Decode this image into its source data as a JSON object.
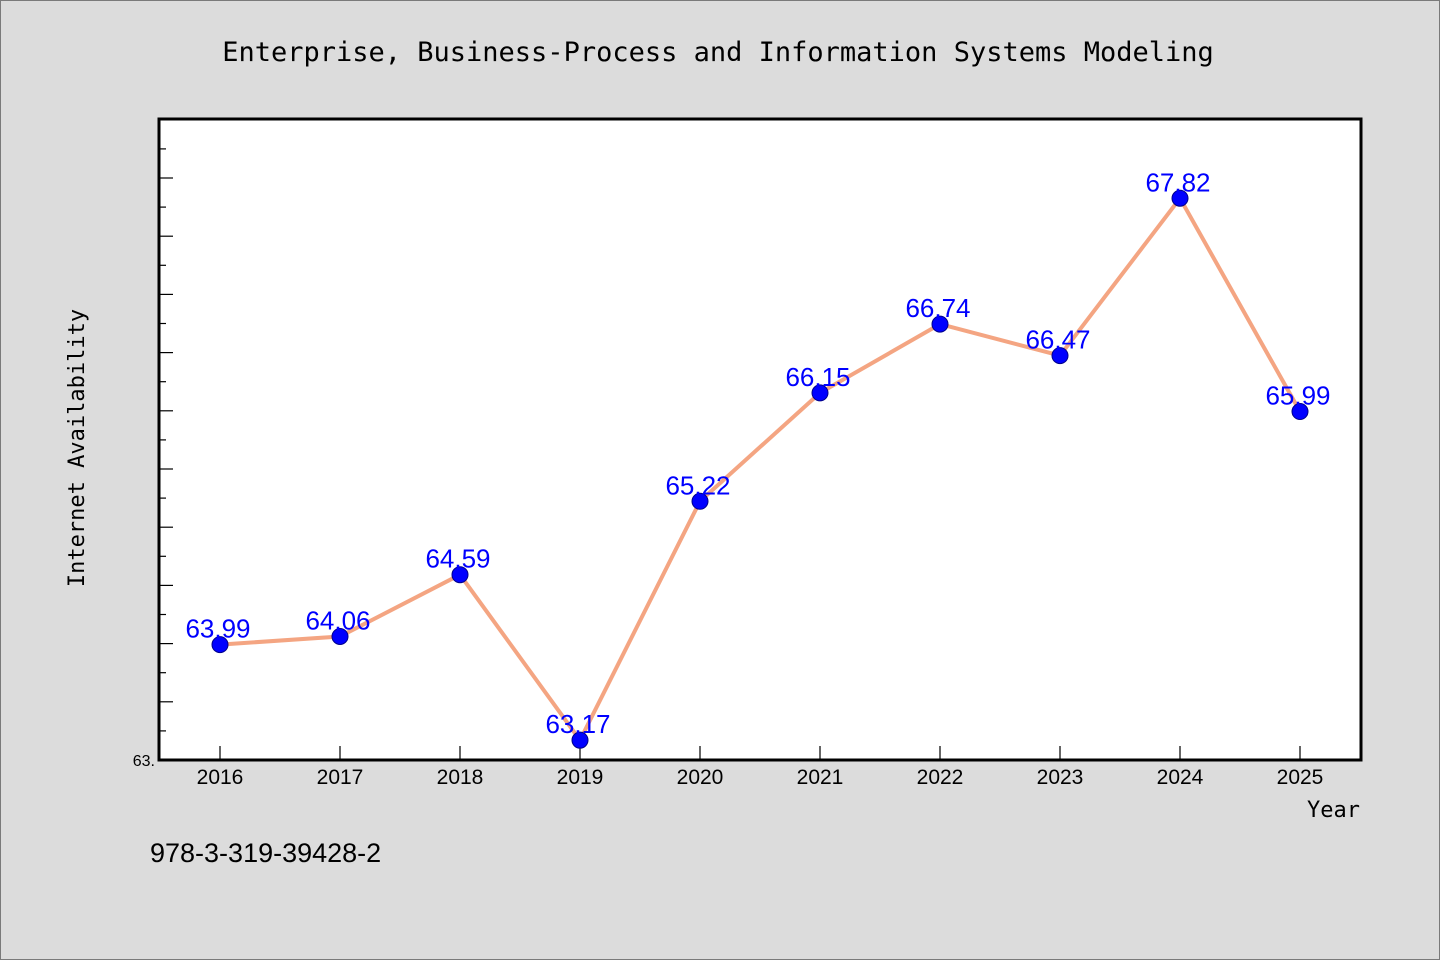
{
  "chart_data": {
    "type": "line",
    "title": "Enterprise, Business-Process and Information Systems Modeling",
    "xlabel": "Year",
    "ylabel": "Internet Availability",
    "categories": [
      "2016",
      "2017",
      "2018",
      "2019",
      "2020",
      "2021",
      "2022",
      "2023",
      "2024",
      "2025"
    ],
    "series": [
      {
        "values": [
          63.99,
          64.06,
          64.59,
          63.17,
          65.22,
          66.15,
          66.74,
          66.47,
          67.82,
          65.99
        ],
        "line_color": "#f4a582",
        "marker_color": "#0000ff",
        "label_color": "#0000ff"
      }
    ],
    "data_labels": [
      "63.99",
      "64.06",
      "64.59",
      "63.17",
      "65.22",
      "66.15",
      "66.74",
      "66.47",
      "67.82",
      "65.99"
    ],
    "y_tick_label": "63.",
    "ylim": [
      63.0,
      68.5
    ],
    "grid": false,
    "legend": "none"
  },
  "footer": {
    "isbn": "978-3-319-39428-2"
  },
  "colors": {
    "background": "#dcdcdc",
    "plot_background": "#ffffff",
    "line": "#f4a582",
    "marker": "#0000ff",
    "labels": "#0000ff"
  }
}
